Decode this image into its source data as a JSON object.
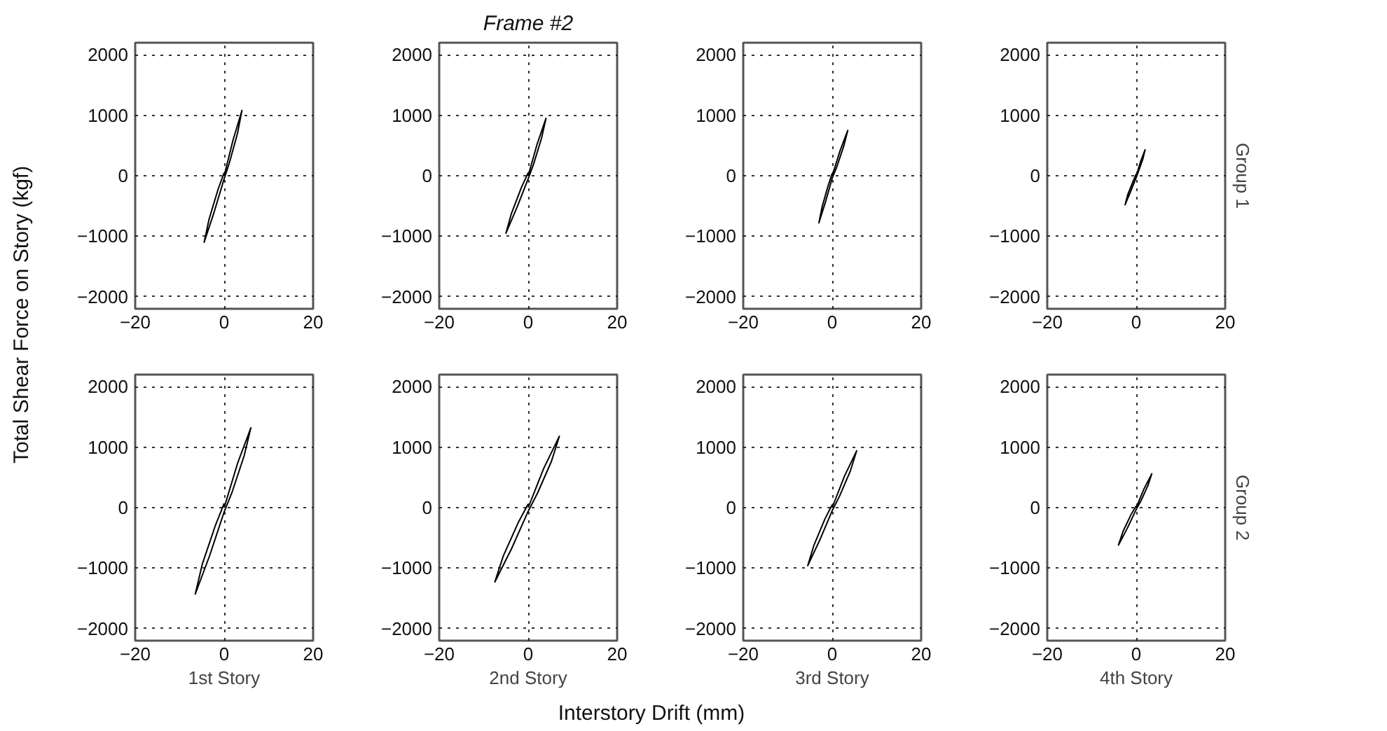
{
  "chart_data": [
    {
      "type": "line",
      "ylabel": "Total Shear Force on Story (kgf)",
      "annotations": [
        "Interstory Drift (mm)"
      ],
      "color": "#000000",
      "x": [
        0,
        2,
        4,
        3,
        1.2,
        0,
        -2.25,
        -4.5,
        -3.4,
        -1.35,
        0
      ],
      "values": [
        0,
        590,
        1080,
        700,
        220,
        -50,
        -600,
        -1100,
        -720,
        -220,
        50
      ],
      "xlim": [
        -20,
        20
      ],
      "xticks": [
        -20,
        0,
        20
      ],
      "ylim": [
        -2200,
        2200
      ],
      "yticks": [
        -2000,
        -1000,
        0,
        1000,
        2000
      ],
      "grid": true
    },
    {
      "type": "line",
      "title": "Frame #2",
      "color": "#000000",
      "x": [
        0,
        2,
        4,
        3,
        1.2,
        0,
        -2.5,
        -5,
        -3.75,
        -1.5,
        0
      ],
      "values": [
        0,
        520,
        950,
        620,
        190,
        -50,
        -520,
        -950,
        -620,
        -190,
        50
      ],
      "xlim": [
        -20,
        20
      ],
      "xticks": [
        -20,
        0,
        20
      ],
      "ylim": [
        -2200,
        2200
      ],
      "yticks": [
        -2000,
        -1000,
        0,
        1000,
        2000
      ],
      "grid": true
    },
    {
      "type": "line",
      "color": "#000000",
      "x": [
        0,
        1.75,
        3.5,
        2.6,
        1.05,
        0,
        -1.5,
        -3,
        -2.25,
        -0.9,
        0
      ],
      "values": [
        0,
        410,
        750,
        490,
        150,
        -40,
        -430,
        -780,
        -510,
        -160,
        40
      ],
      "xlim": [
        -20,
        20
      ],
      "xticks": [
        -20,
        0,
        20
      ],
      "ylim": [
        -2200,
        2200
      ],
      "yticks": [
        -2000,
        -1000,
        0,
        1000,
        2000
      ],
      "grid": true
    },
    {
      "type": "line",
      "y2label": "Group 1",
      "color": "#000000",
      "x": [
        0,
        1,
        2,
        1.5,
        0.6,
        0,
        -1.25,
        -2.5,
        -1.9,
        -0.75,
        0
      ],
      "values": [
        0,
        240,
        430,
        280,
        90,
        -30,
        -260,
        -480,
        -310,
        -100,
        30
      ],
      "xlim": [
        -20,
        20
      ],
      "xticks": [
        -20,
        0,
        20
      ],
      "ylim": [
        -2200,
        2200
      ],
      "yticks": [
        -2000,
        -1000,
        0,
        1000,
        2000
      ],
      "grid": true
    },
    {
      "type": "line",
      "xlabel": "1st Story",
      "color": "#000000",
      "x": [
        0,
        3,
        6,
        4.5,
        1.8,
        0,
        -3.25,
        -6.5,
        -4.9,
        -1.95,
        0
      ],
      "values": [
        0,
        730,
        1320,
        860,
        260,
        -70,
        -790,
        -1430,
        -930,
        -290,
        70
      ],
      "xlim": [
        -20,
        20
      ],
      "xticks": [
        -20,
        0,
        20
      ],
      "ylim": [
        -2200,
        2200
      ],
      "yticks": [
        -2000,
        -1000,
        0,
        1000,
        2000
      ],
      "grid": true
    },
    {
      "type": "line",
      "xlabel": "2nd Story",
      "color": "#000000",
      "x": [
        0,
        3.5,
        7,
        5.25,
        2.1,
        0,
        -3.75,
        -7.5,
        -5.6,
        -2.25,
        0
      ],
      "values": [
        0,
        650,
        1180,
        770,
        240,
        -60,
        -680,
        -1230,
        -800,
        -250,
        60
      ],
      "xlim": [
        -20,
        20
      ],
      "xticks": [
        -20,
        0,
        20
      ],
      "ylim": [
        -2200,
        2200
      ],
      "yticks": [
        -2000,
        -1000,
        0,
        1000,
        2000
      ],
      "grid": true
    },
    {
      "type": "line",
      "xlabel": "3rd Story",
      "color": "#000000",
      "x": [
        0,
        2.75,
        5.5,
        4.1,
        1.65,
        0,
        -2.75,
        -5.5,
        -4.1,
        -1.65,
        0
      ],
      "values": [
        0,
        520,
        940,
        610,
        190,
        -50,
        -530,
        -960,
        -620,
        -190,
        50
      ],
      "xlim": [
        -20,
        20
      ],
      "xticks": [
        -20,
        0,
        20
      ],
      "ylim": [
        -2200,
        2200
      ],
      "yticks": [
        -2000,
        -1000,
        0,
        1000,
        2000
      ],
      "grid": true
    },
    {
      "type": "line",
      "xlabel": "4th Story",
      "y2label": "Group 2",
      "color": "#000000",
      "x": [
        0,
        1.75,
        3.5,
        2.6,
        1.05,
        0,
        -2,
        -4,
        -3,
        -1.2,
        0
      ],
      "values": [
        0,
        310,
        560,
        360,
        110,
        -30,
        -340,
        -620,
        -400,
        -120,
        30
      ],
      "xlim": [
        -20,
        20
      ],
      "xticks": [
        -20,
        0,
        20
      ],
      "ylim": [
        -2200,
        2200
      ],
      "yticks": [
        -2000,
        -1000,
        0,
        1000,
        2000
      ],
      "grid": true
    }
  ]
}
